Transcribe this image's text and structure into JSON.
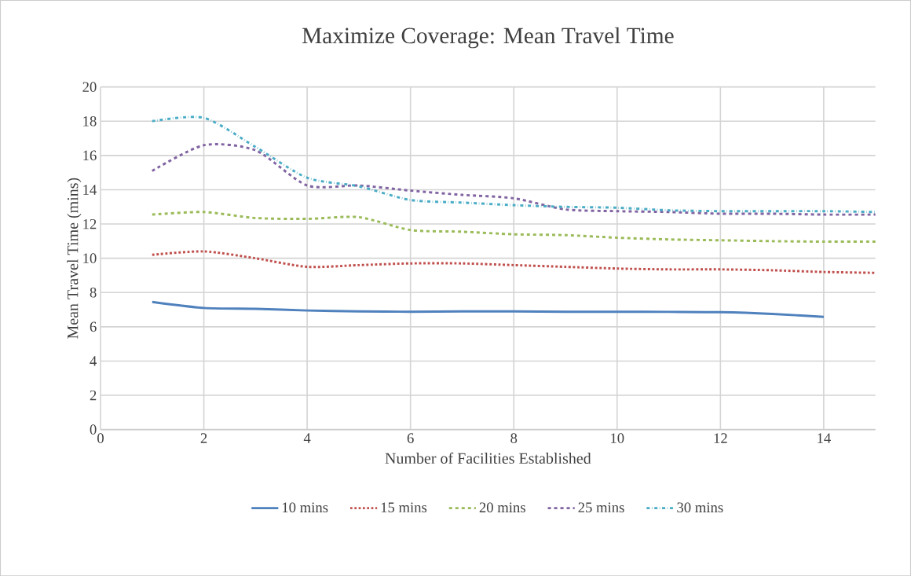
{
  "chart_data": {
    "type": "line",
    "title": "Maximize Coverage: Mean Travel Time",
    "xlabel": "Number of Facilities Established",
    "ylabel": "Mean Travel Time (mins)",
    "x": [
      1,
      2,
      3,
      4,
      5,
      6,
      7,
      8,
      9,
      10,
      11,
      12,
      13,
      14,
      15
    ],
    "series": [
      {
        "name": "10 mins",
        "color": "#4f81bd",
        "line_style": "solid",
        "values": [
          7.45,
          7.1,
          7.05,
          6.95,
          6.9,
          6.88,
          6.9,
          6.9,
          6.88,
          6.88,
          6.87,
          6.85,
          6.75,
          6.58,
          null
        ]
      },
      {
        "name": "15 mins",
        "color": "#c0504d",
        "line_style": "dotted",
        "values": [
          10.2,
          10.4,
          10.0,
          9.5,
          9.6,
          9.7,
          9.7,
          9.6,
          9.5,
          9.4,
          9.35,
          9.35,
          9.3,
          9.2,
          9.15
        ]
      },
      {
        "name": "20 mins",
        "color": "#9bbb59",
        "line_style": "dashed",
        "values": [
          12.55,
          12.7,
          12.35,
          12.3,
          12.4,
          11.65,
          11.55,
          11.4,
          11.35,
          11.2,
          11.1,
          11.05,
          11.0,
          10.97,
          10.97
        ]
      },
      {
        "name": "25 mins",
        "color": "#8064a2",
        "line_style": "dashed",
        "values": [
          15.1,
          16.6,
          16.3,
          14.25,
          14.25,
          13.95,
          13.7,
          13.5,
          12.85,
          12.75,
          12.7,
          12.6,
          12.6,
          12.55,
          12.55
        ]
      },
      {
        "name": "30 mins",
        "color": "#4bacc6",
        "line_style": "dashdot",
        "values": [
          18.0,
          18.2,
          16.5,
          14.7,
          14.2,
          13.4,
          13.25,
          13.1,
          13.0,
          12.95,
          12.8,
          12.75,
          12.75,
          12.75,
          12.7
        ]
      }
    ],
    "xlim": [
      0,
      15
    ],
    "ylim": [
      0,
      20
    ],
    "xticks": [
      0,
      2,
      4,
      6,
      8,
      10,
      12,
      14
    ],
    "yticks": [
      0,
      2,
      4,
      6,
      8,
      10,
      12,
      14,
      16,
      18,
      20
    ],
    "grid": true,
    "legend": "bottom",
    "marker": "none"
  }
}
